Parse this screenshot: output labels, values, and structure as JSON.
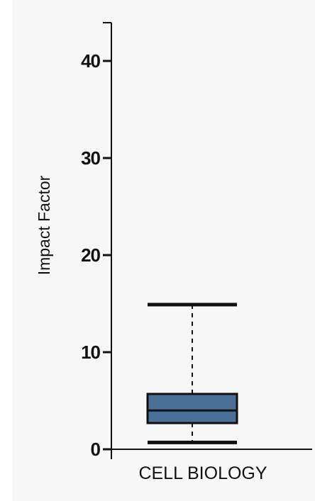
{
  "chart_data": {
    "type": "box",
    "title": "",
    "xlabel": "",
    "ylabel": "Impact Factor",
    "ylim": [
      0,
      44
    ],
    "yticks": [
      0,
      10,
      20,
      30,
      40
    ],
    "ytick_labels": [
      "0",
      "10",
      "20",
      "30",
      "40"
    ],
    "categories": [
      "CELL BIOLOGY"
    ],
    "boxes": [
      {
        "category": "CELL BIOLOGY",
        "whisker_low": 0.7,
        "q1": 2.7,
        "median": 4.0,
        "q3": 5.7,
        "whisker_high": 14.9
      }
    ],
    "box_color": "#4a6f99",
    "grid": false
  }
}
